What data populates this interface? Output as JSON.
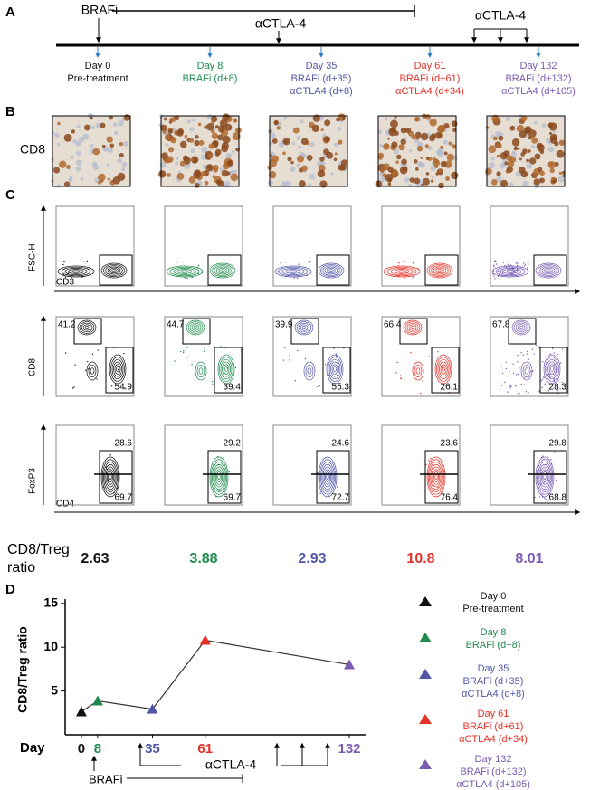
{
  "panel_a": {
    "label": "A",
    "brafi": "BRAFi",
    "actla4_single": "αCTLA-4",
    "actla4_repeat": "αCTLA-4",
    "timepoints": [
      {
        "day": "Day 0",
        "detail": [
          "Pre-treatment"
        ],
        "color": "#111111"
      },
      {
        "day": "Day 8",
        "detail": [
          "BRAFi (d+8)"
        ],
        "color": "#1e8a4c"
      },
      {
        "day": "Day 35",
        "detail": [
          "BRAFi (d+35)",
          "αCTLA4 (d+8)"
        ],
        "color": "#5257a8"
      },
      {
        "day": "Day 61",
        "detail": [
          "BRAFi (d+61)",
          "αCTLA4 (d+34)"
        ],
        "color": "#e53228"
      },
      {
        "day": "Day 132",
        "detail": [
          "BRAFi (d+132)",
          "αCTLA4 (d+105)"
        ],
        "color": "#7a5db3"
      }
    ]
  },
  "panel_b": {
    "label": "B",
    "row_label": "CD8"
  },
  "panel_c": {
    "label": "C",
    "fsc_y": "FSC-H",
    "fsc_x": "CD3",
    "cd8_y": "CD8",
    "foxp3_y": "FoxP3",
    "cd4_x": "CD4",
    "cd8_gates": [
      [
        41.2,
        54.9
      ],
      [
        44.7,
        39.4
      ],
      [
        39.9,
        55.3
      ],
      [
        66.4,
        26.1
      ],
      [
        67.8,
        28.3
      ]
    ],
    "foxp3_gates": [
      [
        28.6,
        69.7
      ],
      [
        29.2,
        69.7
      ],
      [
        24.6,
        72.7
      ],
      [
        23.6,
        76.4
      ],
      [
        29.8,
        68.8
      ]
    ],
    "ratio_label": "CD8/Treg ratio",
    "ratios": [
      2.63,
      3.88,
      2.93,
      10.8,
      8.01
    ]
  },
  "chart_data": {
    "type": "line",
    "label": "D",
    "ylabel": "CD8/Treg ratio",
    "xlabel": "Day",
    "x": [
      0,
      8,
      35,
      61,
      132
    ],
    "values": [
      2.63,
      3.88,
      2.93,
      10.8,
      8.01
    ],
    "point_colors": [
      "#111111",
      "#1e8a4c",
      "#5257a8",
      "#e53228",
      "#7a5db3"
    ],
    "line_color": "#333333",
    "xlim": [
      -8,
      136
    ],
    "xticks": [
      0,
      8,
      35,
      61,
      132
    ],
    "xtick_colors": [
      "#111111",
      "#1e8a4c",
      "#5257a8",
      "#e53228",
      "#7a5db3"
    ],
    "ylim": [
      0,
      15.5
    ],
    "yticks": [
      5,
      10,
      15
    ],
    "annotations": {
      "brafi": "BRAFi",
      "actla4": "αCTLA-4"
    },
    "legend": [
      {
        "lines": [
          "Day 0",
          "Pre-treatment"
        ],
        "color": "#111111"
      },
      {
        "lines": [
          "Day 8",
          "BRAFi (d+8)"
        ],
        "color": "#1e8a4c"
      },
      {
        "lines": [
          "Day 35",
          "BRAFi (d+35)",
          "αCTLA4 (d+8)"
        ],
        "color": "#5257a8"
      },
      {
        "lines": [
          "Day 61",
          "BRAFi (d+61)",
          "αCTLA4 (d+34)"
        ],
        "color": "#e53228"
      },
      {
        "lines": [
          "Day 132",
          "BRAFi (d+132)",
          "αCTLA4 (d+105)"
        ],
        "color": "#7a5db3"
      }
    ]
  }
}
